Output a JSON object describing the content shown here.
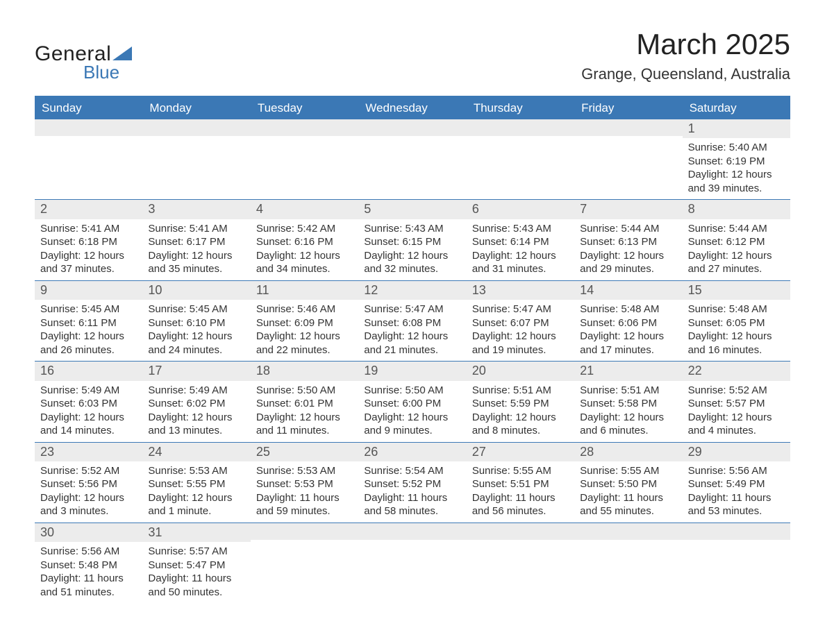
{
  "logo": {
    "text1": "General",
    "text2": "Blue"
  },
  "title": "March 2025",
  "location": "Grange, Queensland, Australia",
  "colors": {
    "header_bg": "#3b78b5",
    "header_text": "#ffffff",
    "daynum_bg": "#ececec",
    "body_text": "#333333",
    "rule": "#3b78b5",
    "page_bg": "#ffffff"
  },
  "layout": {
    "columns": 7,
    "column_headers_fontsize": 17,
    "daynum_fontsize": 18,
    "body_fontsize": 15,
    "title_fontsize": 42,
    "location_fontsize": 22
  },
  "dow": [
    "Sunday",
    "Monday",
    "Tuesday",
    "Wednesday",
    "Thursday",
    "Friday",
    "Saturday"
  ],
  "weeks": [
    [
      {
        "empty": true
      },
      {
        "empty": true
      },
      {
        "empty": true
      },
      {
        "empty": true
      },
      {
        "empty": true
      },
      {
        "empty": true
      },
      {
        "n": "1",
        "sunrise": "Sunrise: 5:40 AM",
        "sunset": "Sunset: 6:19 PM",
        "daylight": "Daylight: 12 hours and 39 minutes."
      }
    ],
    [
      {
        "n": "2",
        "sunrise": "Sunrise: 5:41 AM",
        "sunset": "Sunset: 6:18 PM",
        "daylight": "Daylight: 12 hours and 37 minutes."
      },
      {
        "n": "3",
        "sunrise": "Sunrise: 5:41 AM",
        "sunset": "Sunset: 6:17 PM",
        "daylight": "Daylight: 12 hours and 35 minutes."
      },
      {
        "n": "4",
        "sunrise": "Sunrise: 5:42 AM",
        "sunset": "Sunset: 6:16 PM",
        "daylight": "Daylight: 12 hours and 34 minutes."
      },
      {
        "n": "5",
        "sunrise": "Sunrise: 5:43 AM",
        "sunset": "Sunset: 6:15 PM",
        "daylight": "Daylight: 12 hours and 32 minutes."
      },
      {
        "n": "6",
        "sunrise": "Sunrise: 5:43 AM",
        "sunset": "Sunset: 6:14 PM",
        "daylight": "Daylight: 12 hours and 31 minutes."
      },
      {
        "n": "7",
        "sunrise": "Sunrise: 5:44 AM",
        "sunset": "Sunset: 6:13 PM",
        "daylight": "Daylight: 12 hours and 29 minutes."
      },
      {
        "n": "8",
        "sunrise": "Sunrise: 5:44 AM",
        "sunset": "Sunset: 6:12 PM",
        "daylight": "Daylight: 12 hours and 27 minutes."
      }
    ],
    [
      {
        "n": "9",
        "sunrise": "Sunrise: 5:45 AM",
        "sunset": "Sunset: 6:11 PM",
        "daylight": "Daylight: 12 hours and 26 minutes."
      },
      {
        "n": "10",
        "sunrise": "Sunrise: 5:45 AM",
        "sunset": "Sunset: 6:10 PM",
        "daylight": "Daylight: 12 hours and 24 minutes."
      },
      {
        "n": "11",
        "sunrise": "Sunrise: 5:46 AM",
        "sunset": "Sunset: 6:09 PM",
        "daylight": "Daylight: 12 hours and 22 minutes."
      },
      {
        "n": "12",
        "sunrise": "Sunrise: 5:47 AM",
        "sunset": "Sunset: 6:08 PM",
        "daylight": "Daylight: 12 hours and 21 minutes."
      },
      {
        "n": "13",
        "sunrise": "Sunrise: 5:47 AM",
        "sunset": "Sunset: 6:07 PM",
        "daylight": "Daylight: 12 hours and 19 minutes."
      },
      {
        "n": "14",
        "sunrise": "Sunrise: 5:48 AM",
        "sunset": "Sunset: 6:06 PM",
        "daylight": "Daylight: 12 hours and 17 minutes."
      },
      {
        "n": "15",
        "sunrise": "Sunrise: 5:48 AM",
        "sunset": "Sunset: 6:05 PM",
        "daylight": "Daylight: 12 hours and 16 minutes."
      }
    ],
    [
      {
        "n": "16",
        "sunrise": "Sunrise: 5:49 AM",
        "sunset": "Sunset: 6:03 PM",
        "daylight": "Daylight: 12 hours and 14 minutes."
      },
      {
        "n": "17",
        "sunrise": "Sunrise: 5:49 AM",
        "sunset": "Sunset: 6:02 PM",
        "daylight": "Daylight: 12 hours and 13 minutes."
      },
      {
        "n": "18",
        "sunrise": "Sunrise: 5:50 AM",
        "sunset": "Sunset: 6:01 PM",
        "daylight": "Daylight: 12 hours and 11 minutes."
      },
      {
        "n": "19",
        "sunrise": "Sunrise: 5:50 AM",
        "sunset": "Sunset: 6:00 PM",
        "daylight": "Daylight: 12 hours and 9 minutes."
      },
      {
        "n": "20",
        "sunrise": "Sunrise: 5:51 AM",
        "sunset": "Sunset: 5:59 PM",
        "daylight": "Daylight: 12 hours and 8 minutes."
      },
      {
        "n": "21",
        "sunrise": "Sunrise: 5:51 AM",
        "sunset": "Sunset: 5:58 PM",
        "daylight": "Daylight: 12 hours and 6 minutes."
      },
      {
        "n": "22",
        "sunrise": "Sunrise: 5:52 AM",
        "sunset": "Sunset: 5:57 PM",
        "daylight": "Daylight: 12 hours and 4 minutes."
      }
    ],
    [
      {
        "n": "23",
        "sunrise": "Sunrise: 5:52 AM",
        "sunset": "Sunset: 5:56 PM",
        "daylight": "Daylight: 12 hours and 3 minutes."
      },
      {
        "n": "24",
        "sunrise": "Sunrise: 5:53 AM",
        "sunset": "Sunset: 5:55 PM",
        "daylight": "Daylight: 12 hours and 1 minute."
      },
      {
        "n": "25",
        "sunrise": "Sunrise: 5:53 AM",
        "sunset": "Sunset: 5:53 PM",
        "daylight": "Daylight: 11 hours and 59 minutes."
      },
      {
        "n": "26",
        "sunrise": "Sunrise: 5:54 AM",
        "sunset": "Sunset: 5:52 PM",
        "daylight": "Daylight: 11 hours and 58 minutes."
      },
      {
        "n": "27",
        "sunrise": "Sunrise: 5:55 AM",
        "sunset": "Sunset: 5:51 PM",
        "daylight": "Daylight: 11 hours and 56 minutes."
      },
      {
        "n": "28",
        "sunrise": "Sunrise: 5:55 AM",
        "sunset": "Sunset: 5:50 PM",
        "daylight": "Daylight: 11 hours and 55 minutes."
      },
      {
        "n": "29",
        "sunrise": "Sunrise: 5:56 AM",
        "sunset": "Sunset: 5:49 PM",
        "daylight": "Daylight: 11 hours and 53 minutes."
      }
    ],
    [
      {
        "n": "30",
        "sunrise": "Sunrise: 5:56 AM",
        "sunset": "Sunset: 5:48 PM",
        "daylight": "Daylight: 11 hours and 51 minutes."
      },
      {
        "n": "31",
        "sunrise": "Sunrise: 5:57 AM",
        "sunset": "Sunset: 5:47 PM",
        "daylight": "Daylight: 11 hours and 50 minutes."
      },
      {
        "empty": true
      },
      {
        "empty": true
      },
      {
        "empty": true
      },
      {
        "empty": true
      },
      {
        "empty": true
      }
    ]
  ]
}
